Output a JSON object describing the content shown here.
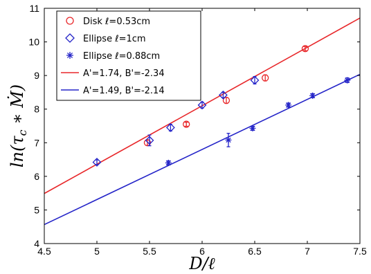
{
  "chart_data": {
    "type": "scatter",
    "xlabel": "D/ℓ",
    "ylabel": "ln(τc ∗ Ṁ)",
    "xlim": [
      4.5,
      7.5
    ],
    "ylim": [
      4,
      11
    ],
    "xticks": [
      4.5,
      5,
      5.5,
      6,
      6.5,
      7,
      7.5
    ],
    "xtick_labels": [
      "4.5",
      "5",
      "5.5",
      "6",
      "6.5",
      "7",
      "7.5"
    ],
    "yticks": [
      4,
      5,
      6,
      7,
      8,
      9,
      10,
      11
    ],
    "ytick_labels": [
      "4",
      "5",
      "6",
      "7",
      "8",
      "9",
      "10",
      "11"
    ],
    "grid": false,
    "legend_position": "top-left",
    "series": [
      {
        "name": "Disk ℓ=0.53cm",
        "kind": "points",
        "marker": "circle",
        "color": "#e8272a",
        "points": [
          {
            "x": 5.48,
            "y": 7.0,
            "err": 0.08
          },
          {
            "x": 5.85,
            "y": 7.55,
            "err": 0.06
          },
          {
            "x": 6.23,
            "y": 8.26,
            "err": 0.09
          },
          {
            "x": 6.6,
            "y": 8.93,
            "err": 0.09
          },
          {
            "x": 6.98,
            "y": 9.8,
            "err": 0.06
          }
        ]
      },
      {
        "name": "Ellipse ℓ=1cm",
        "kind": "points",
        "marker": "diamond",
        "color": "#2424c8",
        "points": [
          {
            "x": 5.0,
            "y": 6.42,
            "err": 0.07
          },
          {
            "x": 5.5,
            "y": 7.07,
            "err": 0.16
          },
          {
            "x": 5.7,
            "y": 7.45,
            "err": 0.1
          },
          {
            "x": 6.0,
            "y": 8.12,
            "err": 0.09
          },
          {
            "x": 6.2,
            "y": 8.42,
            "err": 0.08
          },
          {
            "x": 6.5,
            "y": 8.86,
            "err": 0.11
          }
        ]
      },
      {
        "name": "Ellipse ℓ=0.88cm",
        "kind": "points",
        "marker": "asterisk",
        "color": "#2424c8",
        "points": [
          {
            "x": 5.68,
            "y": 6.4,
            "err": 0.06
          },
          {
            "x": 6.25,
            "y": 7.08,
            "err": 0.2
          },
          {
            "x": 6.48,
            "y": 7.43,
            "err": 0.06
          },
          {
            "x": 6.82,
            "y": 8.12,
            "err": 0.06
          },
          {
            "x": 7.05,
            "y": 8.4,
            "err": 0.06
          },
          {
            "x": 7.38,
            "y": 8.86,
            "err": 0.07
          }
        ]
      },
      {
        "name": "A'=1.74, B'=-2.34",
        "kind": "line",
        "color": "#e8272a",
        "slope": 1.74,
        "intercept": -2.34,
        "x_range": [
          4.5,
          7.5
        ]
      },
      {
        "name": "A'=1.49, B'=-2.14",
        "kind": "line",
        "color": "#2424c8",
        "slope": 1.49,
        "intercept": -2.14,
        "x_range": [
          4.5,
          7.5
        ]
      }
    ]
  }
}
